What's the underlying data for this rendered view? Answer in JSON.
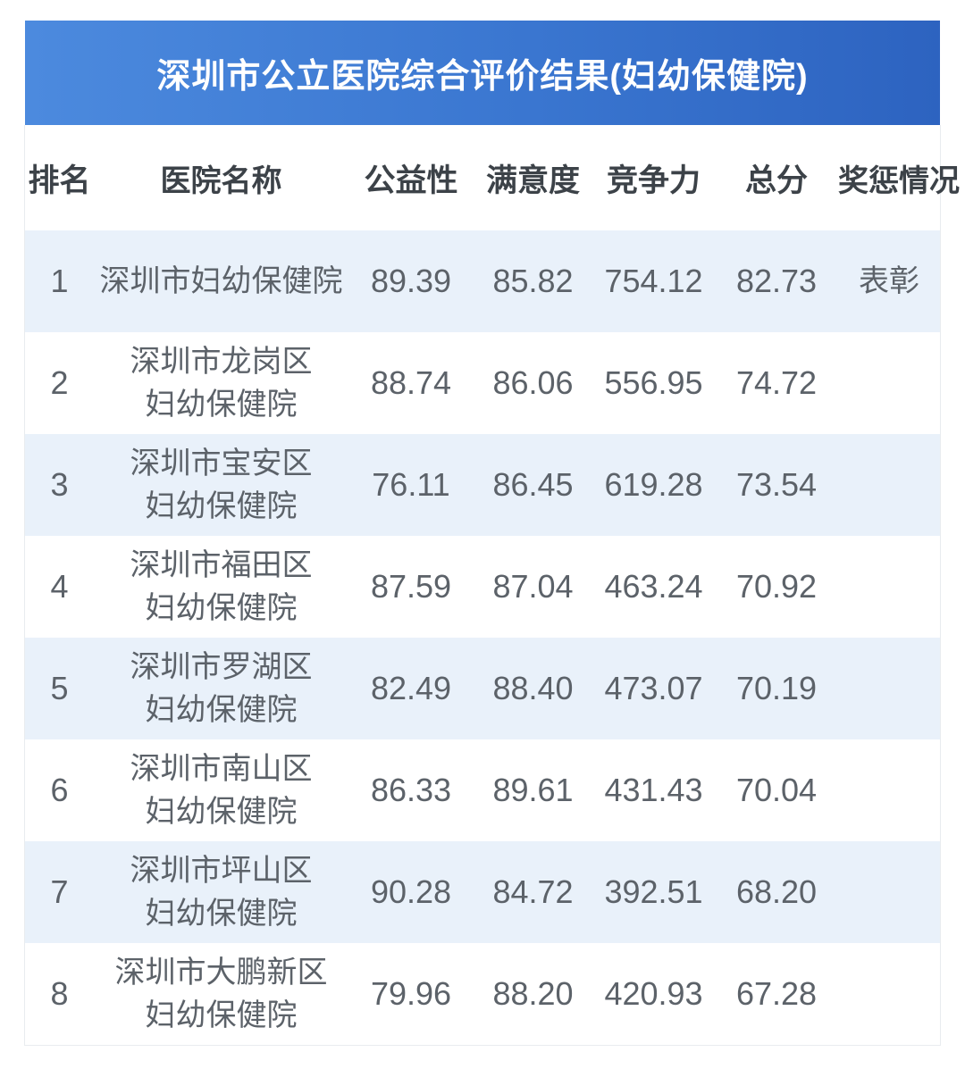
{
  "banner": {
    "title": "深圳市公立医院综合评价结果(妇幼保健院)"
  },
  "table": {
    "columns": [
      {
        "key": "rank",
        "label": "排名"
      },
      {
        "key": "name",
        "label": "医院名称"
      },
      {
        "key": "public_welfare",
        "label": "公益性"
      },
      {
        "key": "satisfaction",
        "label": "满意度"
      },
      {
        "key": "competitiveness",
        "label": "竞争力"
      },
      {
        "key": "total_score",
        "label": "总分"
      },
      {
        "key": "award",
        "label": "奖惩情况"
      }
    ],
    "rows": [
      {
        "rank": "1",
        "name": "深圳市妇幼保健院",
        "public_welfare": "89.39",
        "satisfaction": "85.82",
        "competitiveness": "754.12",
        "total_score": "82.73",
        "award": "表彰"
      },
      {
        "rank": "2",
        "name": "深圳市龙岗区\n妇幼保健院",
        "public_welfare": "88.74",
        "satisfaction": "86.06",
        "competitiveness": "556.95",
        "total_score": "74.72",
        "award": ""
      },
      {
        "rank": "3",
        "name": "深圳市宝安区\n妇幼保健院",
        "public_welfare": "76.11",
        "satisfaction": "86.45",
        "competitiveness": "619.28",
        "total_score": "73.54",
        "award": ""
      },
      {
        "rank": "4",
        "name": "深圳市福田区\n妇幼保健院",
        "public_welfare": "87.59",
        "satisfaction": "87.04",
        "competitiveness": "463.24",
        "total_score": "70.92",
        "award": ""
      },
      {
        "rank": "5",
        "name": "深圳市罗湖区\n妇幼保健院",
        "public_welfare": "82.49",
        "satisfaction": "88.40",
        "competitiveness": "473.07",
        "total_score": "70.19",
        "award": ""
      },
      {
        "rank": "6",
        "name": "深圳市南山区\n妇幼保健院",
        "public_welfare": "86.33",
        "satisfaction": "89.61",
        "competitiveness": "431.43",
        "total_score": "70.04",
        "award": ""
      },
      {
        "rank": "7",
        "name": "深圳市坪山区\n妇幼保健院",
        "public_welfare": "90.28",
        "satisfaction": "84.72",
        "competitiveness": "392.51",
        "total_score": "68.20",
        "award": ""
      },
      {
        "rank": "8",
        "name": "深圳市大鹏新区\n妇幼保健院",
        "public_welfare": "79.96",
        "satisfaction": "88.20",
        "competitiveness": "420.93",
        "total_score": "67.28",
        "award": ""
      }
    ]
  },
  "colors": {
    "banner_gradient_left": "#4c8ade",
    "banner_gradient_right": "#2d63c0",
    "row_highlight": "#e9f1fa",
    "row_plain": "#ffffff",
    "header_text": "#3c4248",
    "body_text": "#5c6269",
    "title_text": "#ffffff",
    "table_border": "#e9ecef"
  },
  "chart_data": {
    "type": "table",
    "title": "深圳市公立医院综合评价结果(妇幼保健院)",
    "columns": [
      "排名",
      "医院名称",
      "公益性",
      "满意度",
      "竞争力",
      "总分",
      "奖惩情况"
    ],
    "rows": [
      [
        "1",
        "深圳市妇幼保健院",
        "89.39",
        "85.82",
        "754.12",
        "82.73",
        "表彰"
      ],
      [
        "2",
        "深圳市龙岗区妇幼保健院",
        "88.74",
        "86.06",
        "556.95",
        "74.72",
        ""
      ],
      [
        "3",
        "深圳市宝安区妇幼保健院",
        "76.11",
        "86.45",
        "619.28",
        "73.54",
        ""
      ],
      [
        "4",
        "深圳市福田区妇幼保健院",
        "87.59",
        "87.04",
        "463.24",
        "70.92",
        ""
      ],
      [
        "5",
        "深圳市罗湖区妇幼保健院",
        "82.49",
        "88.40",
        "473.07",
        "70.19",
        ""
      ],
      [
        "6",
        "深圳市南山区妇幼保健院",
        "86.33",
        "89.61",
        "431.43",
        "70.04",
        ""
      ],
      [
        "7",
        "深圳市坪山区妇幼保健院",
        "90.28",
        "84.72",
        "392.51",
        "68.20",
        ""
      ],
      [
        "8",
        "深圳市大鹏新区妇幼保健院",
        "79.96",
        "88.20",
        "420.93",
        "67.28",
        ""
      ]
    ]
  }
}
